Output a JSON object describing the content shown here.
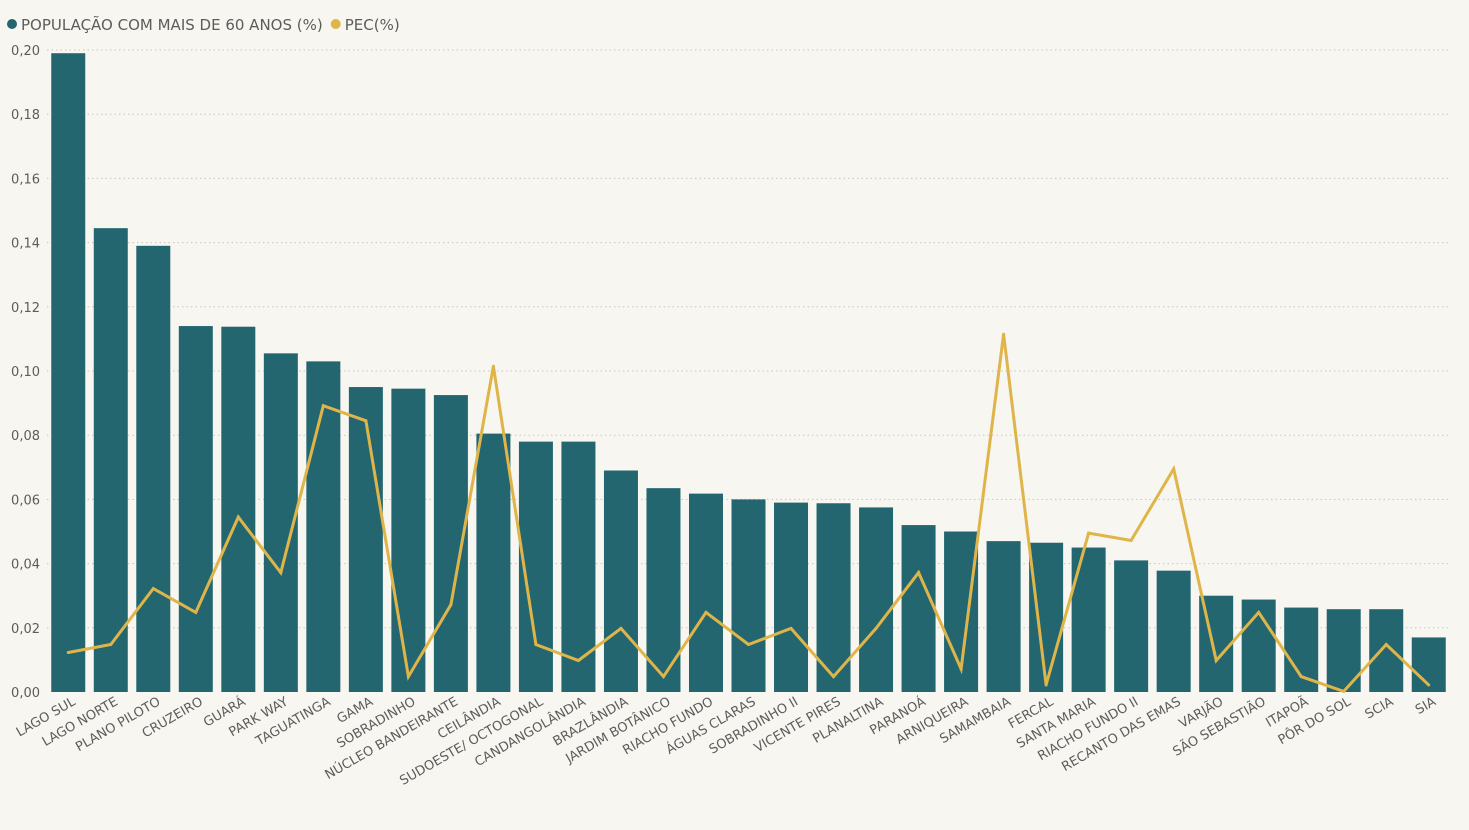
{
  "chart_data": {
    "type": "bar",
    "categories": [
      "LAGO SUL",
      "LAGO NORTE",
      "PLANO PILOTO",
      "CRUZEIRO",
      "GUARÁ",
      "PARK WAY",
      "TAGUATINGA",
      "GAMA",
      "SOBRADINHO",
      "NÚCLEO BANDEIRANTE",
      "CEILÂNDIA",
      "SUDOESTE/ OCTOGONAL",
      "CANDANGOLÂNDIA",
      "BRAZLÂNDIA",
      "JARDIM BOTÂNICO",
      "RIACHO FUNDO",
      "ÁGUAS CLARAS",
      "SOBRADINHO II",
      "VICENTE PIRES",
      "PLANALTINA",
      "PARANOÁ",
      "ARNIQUEIRA",
      "SAMAMBAIA",
      "FERCAL",
      "SANTA MARIA",
      "RIACHO FUNDO II",
      "RECANTO DAS EMAS",
      "VARJÃO",
      "SÃO SEBASTIÃO",
      "ITAPOÃ",
      "PÔR DO SOL",
      "SCIA",
      "SIA"
    ],
    "series": [
      {
        "name": "POPULAÇÃO COM MAIS DE 60 ANOS (%)",
        "type": "bar",
        "color": "#236670",
        "values": [
          0.199,
          0.1445,
          0.139,
          0.114,
          0.1138,
          0.1055,
          0.103,
          0.095,
          0.0945,
          0.0925,
          0.0805,
          0.078,
          0.078,
          0.069,
          0.0635,
          0.0618,
          0.06,
          0.059,
          0.0588,
          0.0575,
          0.052,
          0.05,
          0.047,
          0.0465,
          0.045,
          0.041,
          0.0378,
          0.03,
          0.0288,
          0.0263,
          0.0258,
          0.0258,
          0.017
        ]
      },
      {
        "name": "PEC(%)",
        "type": "line",
        "color": "#dfb54a",
        "values": [
          0.0123,
          0.0148,
          0.0322,
          0.0248,
          0.0545,
          0.0372,
          0.0892,
          0.0845,
          0.0048,
          0.0272,
          0.1015,
          0.0148,
          0.0098,
          0.0198,
          0.0048,
          0.0248,
          0.0148,
          0.0198,
          0.0048,
          0.0198,
          0.0372,
          0.0072,
          0.1115,
          0.0022,
          0.0495,
          0.0472,
          0.0695,
          0.0098,
          0.0248,
          0.0048,
          0.0002,
          0.0148,
          0.0022
        ]
      }
    ],
    "ylim": [
      0,
      0.2
    ],
    "yticks": [
      "0,00",
      "0,02",
      "0,04",
      "0,06",
      "0,08",
      "0,10",
      "0,12",
      "0,14",
      "0,16",
      "0,18",
      "0,20"
    ],
    "grid": true,
    "legend_position": "top-left",
    "title": "",
    "xlabel": "",
    "ylabel": ""
  }
}
